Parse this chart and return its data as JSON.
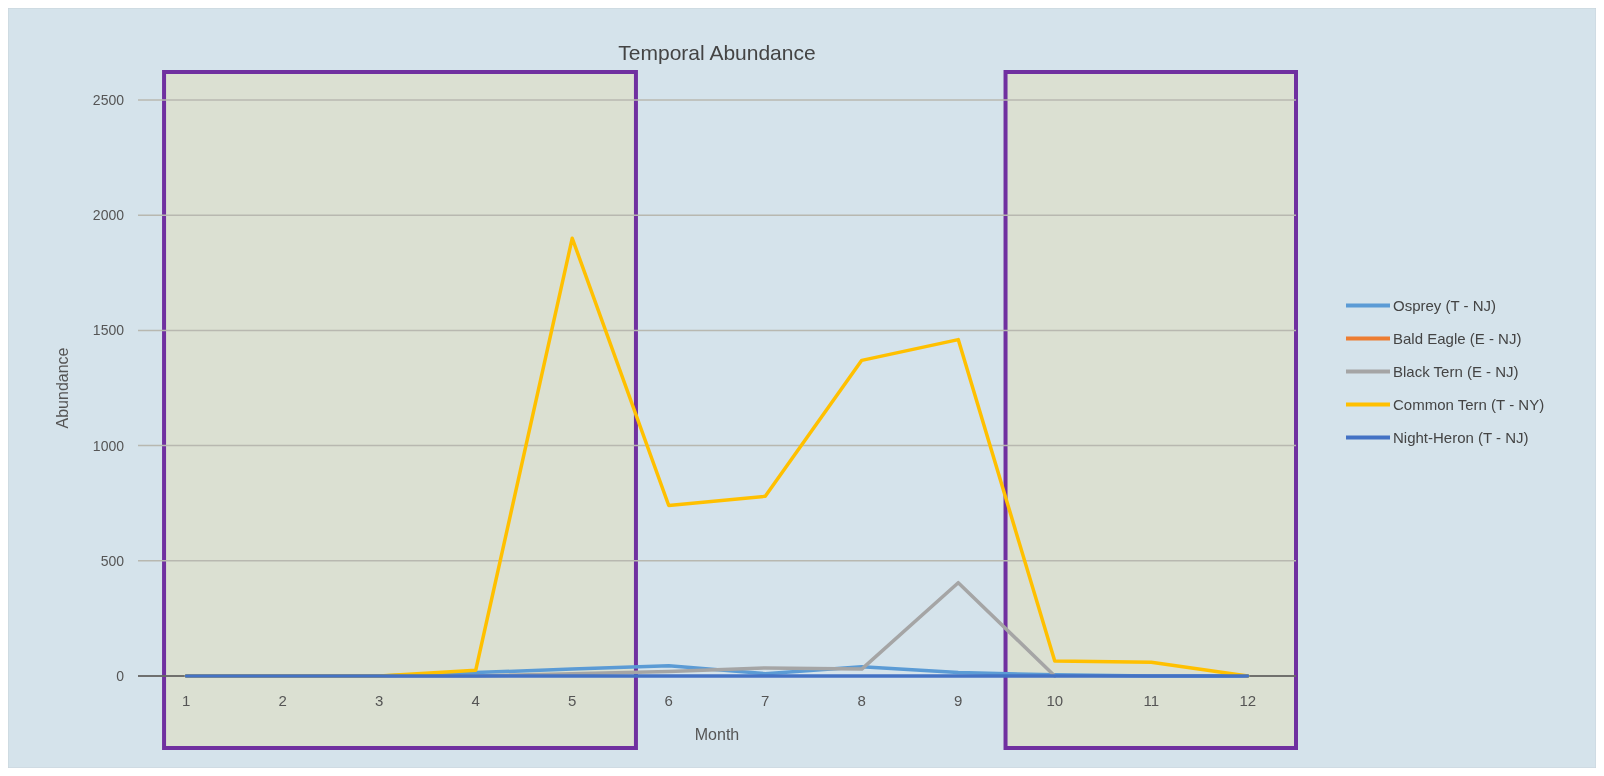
{
  "chart_data": {
    "type": "line",
    "title": "Temporal Abundance",
    "xlabel": "Month",
    "ylabel": "Abundance",
    "x": [
      1,
      2,
      3,
      4,
      5,
      6,
      7,
      8,
      9,
      10,
      11,
      12
    ],
    "xlim": [
      0.5,
      12.5
    ],
    "xticks": [
      1,
      2,
      3,
      4,
      5,
      6,
      7,
      8,
      9,
      10,
      11,
      12
    ],
    "ylim": [
      0,
      2500
    ],
    "yticks": [
      0,
      500,
      1000,
      1500,
      2000,
      2500
    ],
    "grid": "y",
    "legend": "right",
    "series": [
      {
        "name": "Osprey (T - NJ)",
        "color": "#5b9bd5",
        "values": [
          0,
          0,
          0,
          15,
          30,
          45,
          10,
          40,
          15,
          5,
          0,
          0
        ]
      },
      {
        "name": "Bald Eagle (E - NJ)",
        "color": "#ed7d31",
        "values": [
          null,
          null,
          null,
          null,
          null,
          null,
          null,
          null,
          null,
          null,
          null,
          null
        ]
      },
      {
        "name": "Black Tern (E - NJ)",
        "color": "#a5a5a5",
        "values": [
          0,
          0,
          0,
          0,
          10,
          20,
          35,
          30,
          405,
          0,
          null,
          null
        ]
      },
      {
        "name": "Common Tern (T - NY)",
        "color": "#ffc000",
        "values": [
          0,
          0,
          0,
          25,
          1900,
          740,
          780,
          1370,
          1460,
          65,
          60,
          0
        ]
      },
      {
        "name": "Night-Heron (T - NJ)",
        "color": "#4472c4",
        "values": [
          0,
          0,
          0,
          0,
          0,
          0,
          0,
          0,
          0,
          0,
          0,
          0
        ]
      }
    ],
    "bands": [
      {
        "axis": "x",
        "from": 0.77,
        "to": 5.66,
        "color": "#7030a0"
      },
      {
        "axis": "x",
        "from": 9.49,
        "to": 12.5,
        "color": "#7030a0"
      }
    ]
  }
}
